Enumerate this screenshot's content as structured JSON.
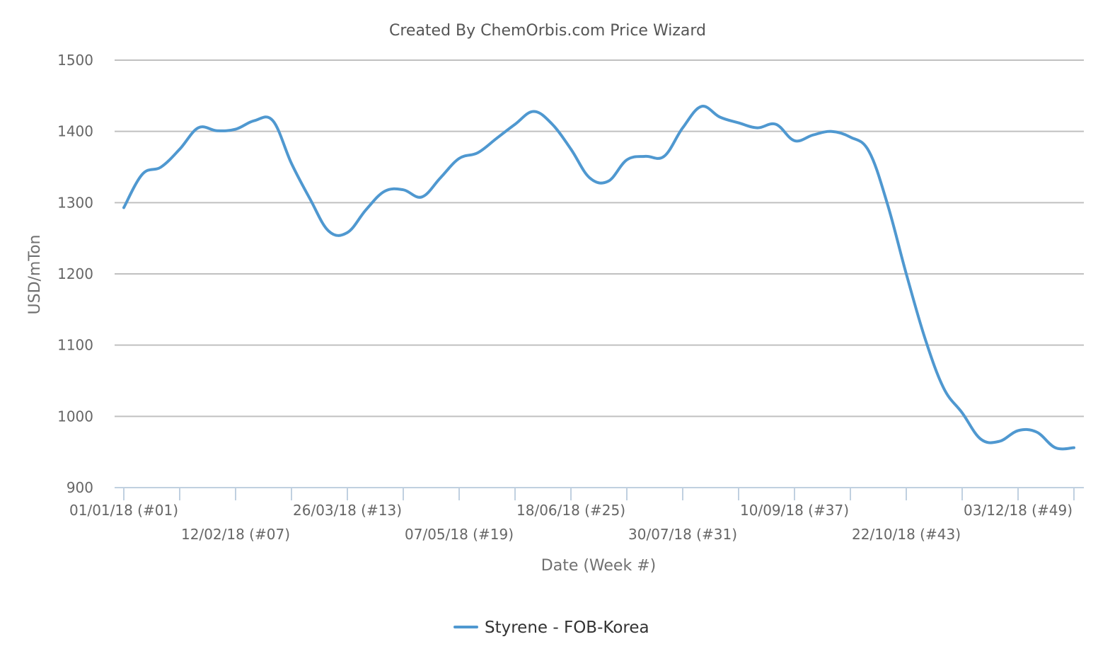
{
  "chart_data": {
    "type": "line",
    "title": "Created By ChemOrbis.com Price Wizard",
    "xlabel": "Date (Week #)",
    "ylabel": "USD/mTon",
    "ylim": [
      900,
      1500
    ],
    "yticks": [
      900,
      1000,
      1100,
      1200,
      1300,
      1400,
      1500
    ],
    "grid": true,
    "legend_position": "bottom-center",
    "xtick_labels": [
      {
        "week": 1,
        "label": "01/01/18 (#01)"
      },
      {
        "week": 7,
        "label": "12/02/18 (#07)"
      },
      {
        "week": 13,
        "label": "26/03/18 (#13)"
      },
      {
        "week": 19,
        "label": "07/05/18 (#19)"
      },
      {
        "week": 25,
        "label": "18/06/18 (#25)"
      },
      {
        "week": 31,
        "label": "30/07/18 (#31)"
      },
      {
        "week": 37,
        "label": "10/09/18 (#37)"
      },
      {
        "week": 43,
        "label": "22/10/18 (#43)"
      },
      {
        "week": 49,
        "label": "03/12/18 (#49)"
      }
    ],
    "xtick_weeks": [
      1,
      4,
      7,
      10,
      13,
      16,
      19,
      22,
      25,
      28,
      31,
      34,
      37,
      40,
      43,
      46,
      49,
      52
    ],
    "series": [
      {
        "name": "Styrene - FOB-Korea",
        "color": "#4f98d0",
        "x": [
          1,
          2,
          3,
          4,
          5,
          6,
          7,
          8,
          9,
          10,
          11,
          12,
          13,
          14,
          15,
          16,
          17,
          18,
          19,
          20,
          21,
          22,
          23,
          24,
          25,
          26,
          27,
          28,
          29,
          30,
          31,
          32,
          33,
          34,
          35,
          36,
          37,
          38,
          39,
          40,
          41,
          42,
          43,
          44,
          45,
          46,
          47,
          48,
          49,
          50,
          51,
          52
        ],
        "values": [
          1293,
          1340,
          1350,
          1375,
          1405,
          1401,
          1403,
          1415,
          1415,
          1355,
          1305,
          1260,
          1258,
          1290,
          1316,
          1318,
          1308,
          1335,
          1362,
          1370,
          1390,
          1410,
          1428,
          1410,
          1375,
          1335,
          1330,
          1360,
          1365,
          1365,
          1405,
          1435,
          1420,
          1412,
          1405,
          1410,
          1387,
          1395,
          1400,
          1392,
          1372,
          1297,
          1200,
          1110,
          1040,
          1005,
          968,
          965,
          980,
          978,
          956,
          956
        ]
      }
    ]
  }
}
